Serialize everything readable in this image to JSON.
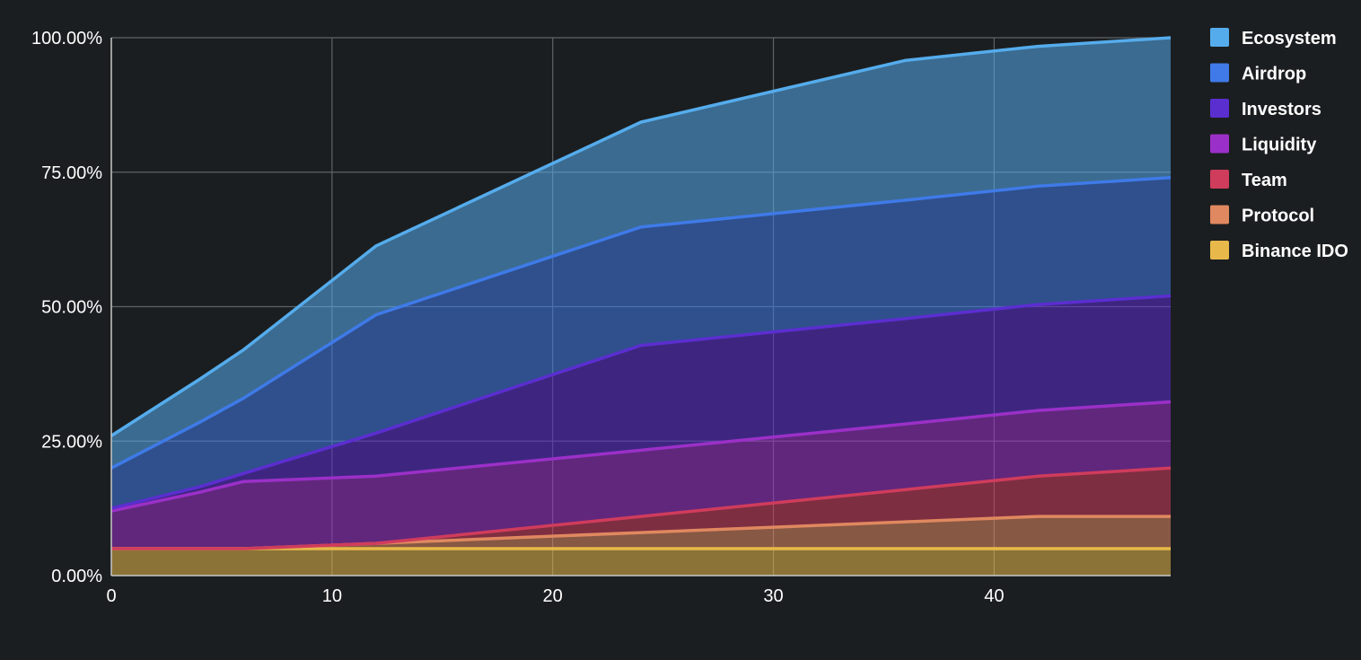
{
  "chart_data": {
    "type": "area",
    "stacked": true,
    "title": "",
    "xlabel": "",
    "ylabel": "",
    "xlim": [
      0,
      48
    ],
    "ylim": [
      0,
      100
    ],
    "x_ticks": [
      0,
      10,
      20,
      30,
      40
    ],
    "x_tick_labels": [
      "0",
      "10",
      "20",
      "30",
      "40"
    ],
    "y_ticks": [
      0,
      25,
      50,
      75,
      100
    ],
    "y_tick_labels": [
      "0.00%",
      "25.00%",
      "50.00%",
      "75.00%",
      "100.00%"
    ],
    "grid": true,
    "legend_position": "right",
    "x": [
      0,
      4,
      6,
      12,
      24,
      36,
      42,
      48
    ],
    "series": [
      {
        "name": "Binance IDO",
        "color": "#e8b94a",
        "values": [
          5,
          5,
          5,
          5,
          5,
          5,
          5,
          5
        ]
      },
      {
        "name": "Protocol",
        "color": "#e08860",
        "values": [
          0,
          0,
          0,
          1,
          3,
          5,
          6,
          6
        ]
      },
      {
        "name": "Team",
        "color": "#d03c5c",
        "values": [
          0,
          0,
          0,
          0,
          3,
          6,
          7.5,
          9
        ]
      },
      {
        "name": "Liquidity",
        "color": "#9b30c8",
        "values": [
          7,
          10.5,
          12.5,
          12.5,
          12.3,
          12.2,
          12.2,
          12.3
        ]
      },
      {
        "name": "Investors",
        "color": "#5b2ed0",
        "values": [
          0.5,
          1,
          1.5,
          8,
          19.5,
          19.6,
          19.7,
          19.7
        ]
      },
      {
        "name": "Airdrop",
        "color": "#3f7ae8",
        "values": [
          7.5,
          12,
          14,
          22,
          22,
          22,
          22,
          22
        ]
      },
      {
        "name": "Ecosystem",
        "color": "#55acec",
        "values": [
          6,
          8,
          9,
          12.8,
          19.5,
          26,
          26,
          26
        ]
      }
    ],
    "legend_order": [
      "Ecosystem",
      "Airdrop",
      "Investors",
      "Liquidity",
      "Team",
      "Protocol",
      "Binance IDO"
    ]
  }
}
